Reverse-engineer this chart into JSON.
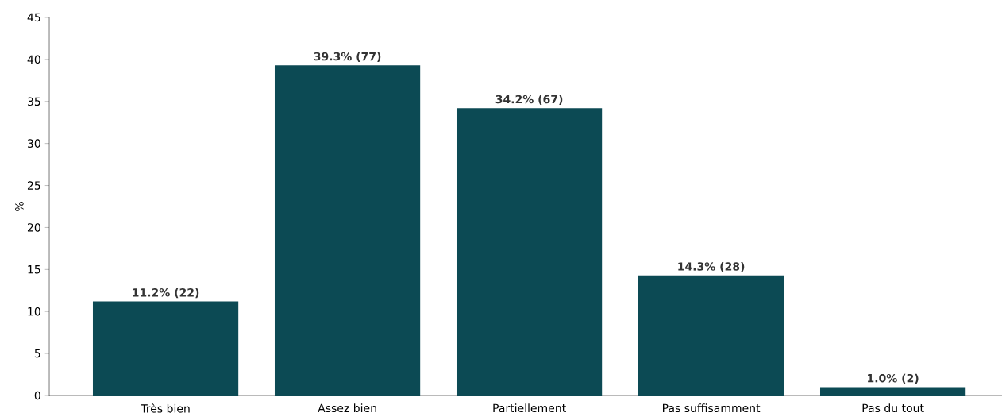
{
  "chart_data": {
    "type": "bar",
    "ylabel": "%",
    "categories": [
      "Très bien",
      "Assez bien",
      "Partiellement",
      "Pas suffisamment",
      "Pas du tout"
    ],
    "values": [
      11.2,
      39.3,
      34.2,
      14.3,
      1.0
    ],
    "value_labels": [
      "11.2% (22)",
      "39.3% (77)",
      "34.2% (67)",
      "14.3% (28)",
      "1.0% (2)"
    ],
    "color": "#0c4a54",
    "ylim": [
      0,
      45
    ],
    "yticks": [
      0,
      5,
      10,
      15,
      20,
      25,
      30,
      35,
      40,
      45
    ]
  }
}
